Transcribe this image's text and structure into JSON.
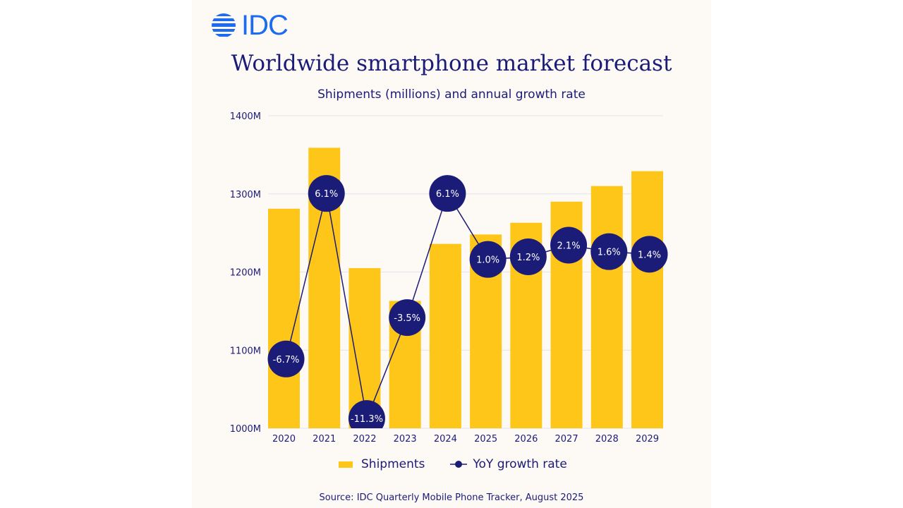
{
  "logo": {
    "text": "IDC",
    "color": "#1d6bf0"
  },
  "source": "Source:  IDC Quarterly Mobile Phone Tracker, August 2025",
  "chart_data": {
    "type": "bar",
    "title": "Worldwide smartphone market forecast",
    "subtitle": "Shipments (millions) and annual growth rate",
    "categories": [
      "2020",
      "2021",
      "2022",
      "2023",
      "2024",
      "2025",
      "2026",
      "2027",
      "2028",
      "2029"
    ],
    "series": [
      {
        "name": "Shipments",
        "type": "bar",
        "color": "#ffc61a",
        "values": [
          1281,
          1359,
          1205,
          1163,
          1236,
          1248,
          1263,
          1290,
          1310,
          1329
        ]
      },
      {
        "name": "YoY growth rate",
        "type": "line",
        "color": "#1b1b78",
        "values": [
          -6.7,
          6.1,
          -11.3,
          -3.5,
          6.1,
          1.0,
          1.2,
          2.1,
          1.6,
          1.4
        ],
        "labels": [
          "-6.7%",
          "6.1%",
          "-11.3%",
          "-3.5%",
          "6.1%",
          "1.0%",
          "1.2%",
          "2.1%",
          "1.6%",
          "1.4%"
        ]
      }
    ],
    "yticks": [
      "1000M",
      "1100M",
      "1200M",
      "1300M",
      "1400M"
    ],
    "ytick_values": [
      1000,
      1100,
      1200,
      1300,
      1400
    ],
    "ylim": [
      1000,
      1400
    ],
    "grid": true,
    "legend_position": "bottom"
  }
}
